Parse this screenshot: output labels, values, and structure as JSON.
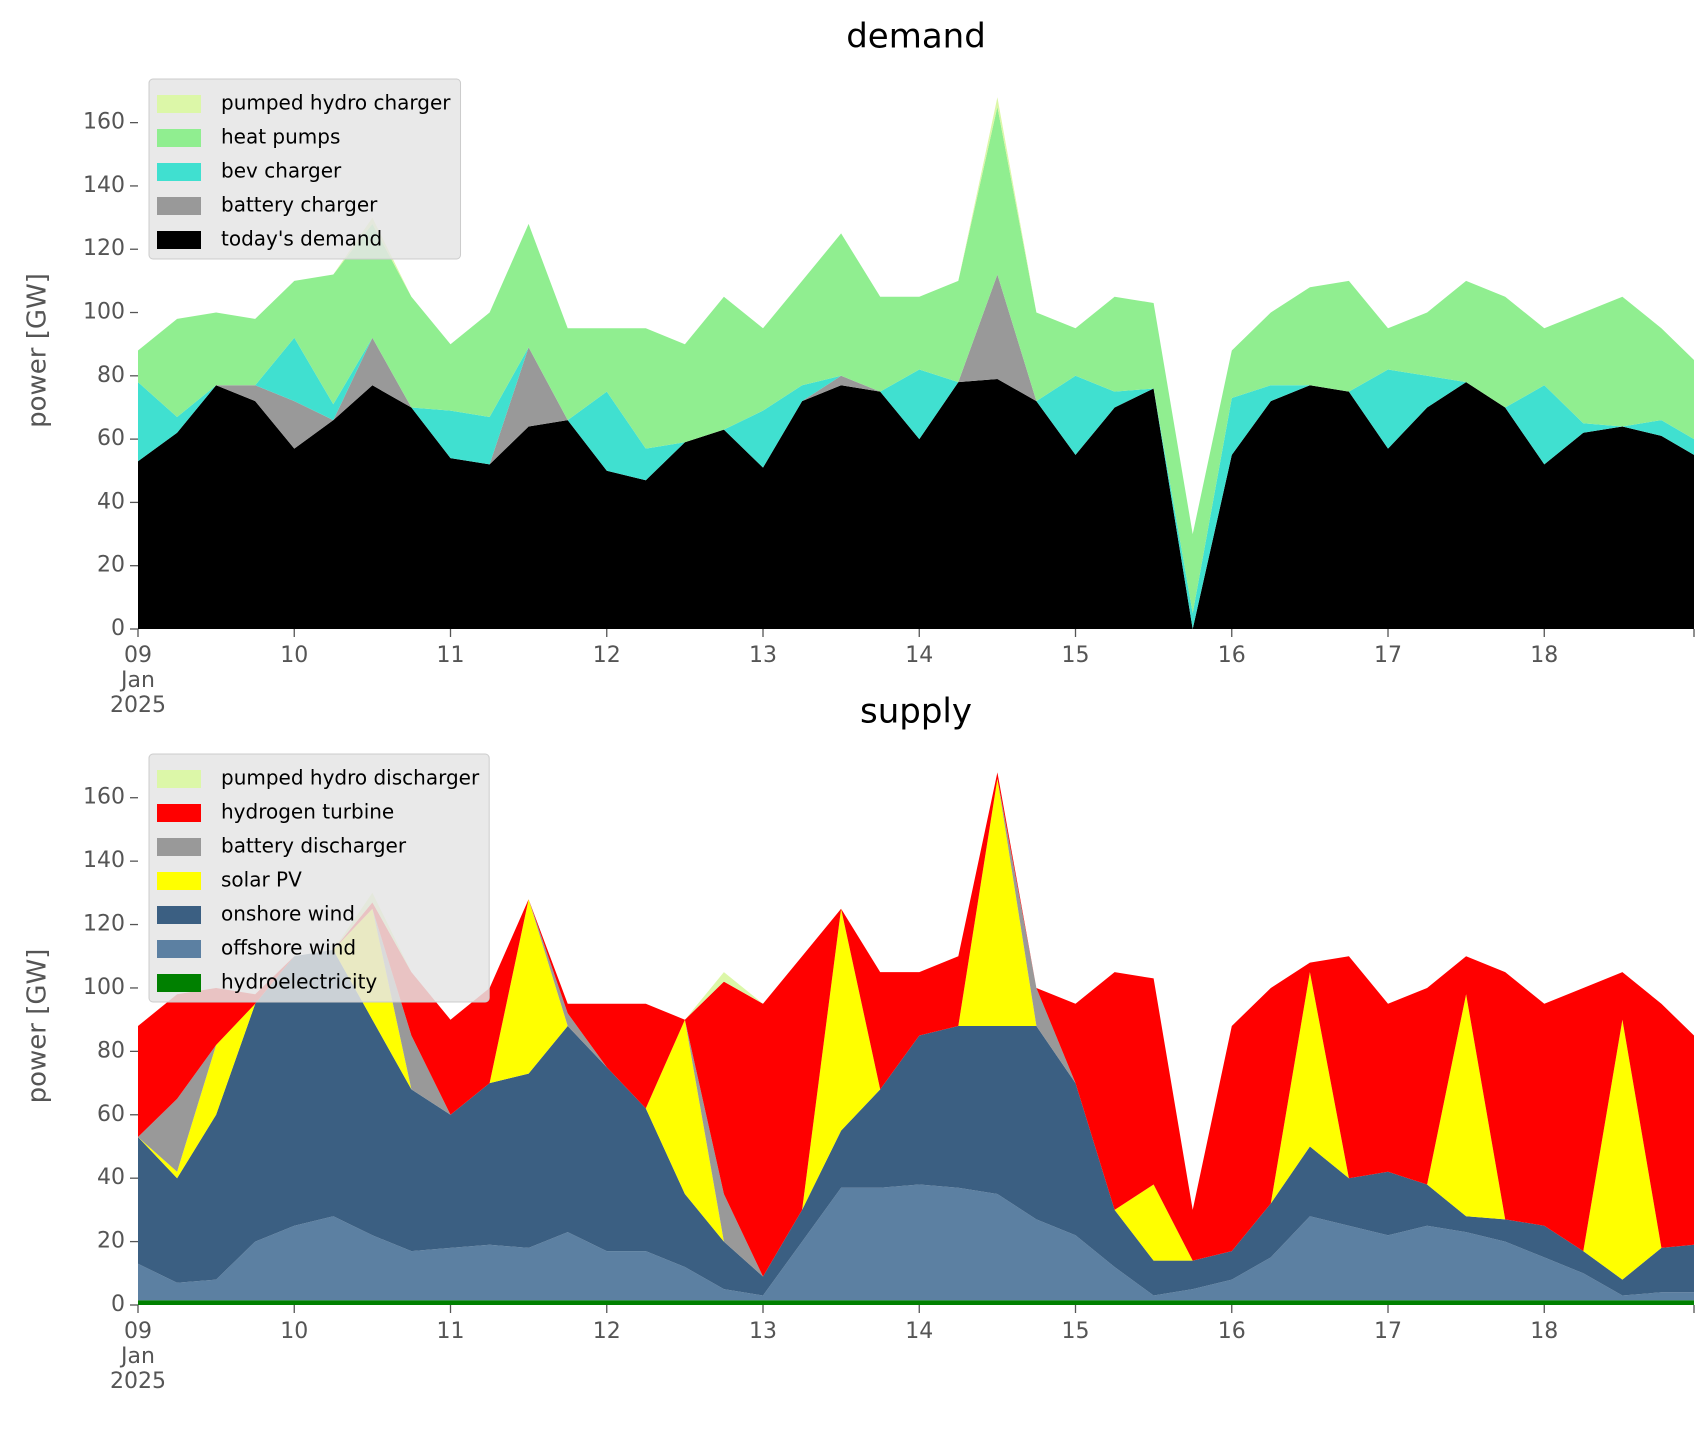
{
  "chart_data": [
    {
      "type": "area",
      "stacked": true,
      "title": "demand",
      "ylabel": "power [GW]",
      "legend": "upper left",
      "x": [
        "2025-01-09T00:00",
        "2025-01-09T06:00",
        "2025-01-09T12:00",
        "2025-01-09T18:00",
        "2025-01-10T00:00",
        "2025-01-10T06:00",
        "2025-01-10T12:00",
        "2025-01-10T18:00",
        "2025-01-11T00:00",
        "2025-01-11T06:00",
        "2025-01-11T12:00",
        "2025-01-11T18:00",
        "2025-01-12T00:00",
        "2025-01-12T06:00",
        "2025-01-12T12:00",
        "2025-01-12T18:00",
        "2025-01-13T00:00",
        "2025-01-13T06:00",
        "2025-01-13T12:00",
        "2025-01-13T18:00",
        "2025-01-14T00:00",
        "2025-01-14T06:00",
        "2025-01-14T12:00",
        "2025-01-14T18:00",
        "2025-01-15T00:00",
        "2025-01-15T06:00",
        "2025-01-15T12:00",
        "2025-01-15T18:00",
        "2025-01-16T00:00",
        "2025-01-16T06:00",
        "2025-01-16T12:00",
        "2025-01-16T18:00",
        "2025-01-17T00:00",
        "2025-01-17T06:00",
        "2025-01-17T12:00",
        "2025-01-17T18:00",
        "2025-01-18T00:00",
        "2025-01-18T06:00",
        "2025-01-18T12:00",
        "2025-01-18T18:00",
        "2025-01-18T23:00"
      ],
      "xlim": [
        "2025-01-09T00:00",
        "2025-01-18T23:00"
      ],
      "xticks": [
        {
          "value": "2025-01-09T00:00",
          "label": "09\nJan\n2025"
        },
        {
          "value": "2025-01-10T00:00",
          "label": "10"
        },
        {
          "value": "2025-01-11T00:00",
          "label": "11"
        },
        {
          "value": "2025-01-12T00:00",
          "label": "12"
        },
        {
          "value": "2025-01-13T00:00",
          "label": "13"
        },
        {
          "value": "2025-01-14T00:00",
          "label": "14"
        },
        {
          "value": "2025-01-15T00:00",
          "label": "15"
        },
        {
          "value": "2025-01-16T00:00",
          "label": "16"
        },
        {
          "value": "2025-01-17T00:00",
          "label": "17"
        },
        {
          "value": "2025-01-18T00:00",
          "label": "18"
        }
      ],
      "ylim": [
        0,
        176
      ],
      "yticks": [
        0,
        20,
        40,
        60,
        80,
        100,
        120,
        140,
        160
      ],
      "series": [
        {
          "name": "today's demand",
          "color": "#000000",
          "values": [
            53,
            62,
            77,
            72,
            57,
            66,
            77,
            70,
            54,
            52,
            64,
            66,
            50,
            47,
            59,
            63,
            51,
            72,
            77,
            75,
            60,
            78,
            79,
            72,
            55,
            70,
            76,
            0,
            55,
            72,
            77,
            75,
            57,
            70,
            78,
            70,
            52,
            62,
            64,
            61,
            55
          ]
        },
        {
          "name": "battery charger",
          "color": "#999999",
          "values": [
            0,
            0,
            0,
            5,
            15,
            0,
            15,
            0,
            0,
            0,
            25,
            0,
            0,
            0,
            0,
            0,
            0,
            0,
            3,
            0,
            0,
            0,
            33,
            0,
            0,
            0,
            0,
            0,
            0,
            0,
            0,
            0,
            0,
            0,
            0,
            0,
            0,
            0,
            0,
            0,
            0
          ]
        },
        {
          "name": "bev charger",
          "color": "#40e0d0",
          "values": [
            25,
            5,
            0,
            0,
            20,
            5,
            0,
            0,
            15,
            15,
            0,
            0,
            25,
            10,
            0,
            0,
            18,
            5,
            0,
            0,
            22,
            0,
            0,
            0,
            25,
            5,
            0,
            5,
            18,
            5,
            0,
            0,
            25,
            10,
            0,
            0,
            25,
            3,
            0,
            5,
            5
          ]
        },
        {
          "name": "heat pumps",
          "color": "#90ee90",
          "values": [
            10,
            31,
            23,
            21,
            18,
            41,
            36,
            35,
            21,
            33,
            39,
            29,
            20,
            38,
            31,
            42,
            26,
            33,
            45,
            30,
            23,
            32,
            53,
            28,
            15,
            30,
            27,
            25,
            15,
            23,
            31,
            35,
            13,
            20,
            32,
            35,
            18,
            35,
            41,
            29,
            25
          ]
        },
        {
          "name": "pumped hydro charger",
          "color": "#dcf7a8",
          "values": [
            0,
            0,
            0,
            0,
            0,
            0,
            2,
            0,
            0,
            0,
            0,
            0,
            0,
            0,
            0,
            0,
            0,
            0,
            0,
            0,
            0,
            0,
            3,
            0,
            0,
            0,
            0,
            0,
            0,
            0,
            0,
            0,
            0,
            0,
            0,
            0,
            0,
            0,
            0,
            0,
            0
          ]
        }
      ]
    },
    {
      "type": "area",
      "stacked": true,
      "title": "supply",
      "ylabel": "power [GW]",
      "legend": "upper left",
      "x": [
        "2025-01-09T00:00",
        "2025-01-09T06:00",
        "2025-01-09T12:00",
        "2025-01-09T18:00",
        "2025-01-10T00:00",
        "2025-01-10T06:00",
        "2025-01-10T12:00",
        "2025-01-10T18:00",
        "2025-01-11T00:00",
        "2025-01-11T06:00",
        "2025-01-11T12:00",
        "2025-01-11T18:00",
        "2025-01-12T00:00",
        "2025-01-12T06:00",
        "2025-01-12T12:00",
        "2025-01-12T18:00",
        "2025-01-13T00:00",
        "2025-01-13T06:00",
        "2025-01-13T12:00",
        "2025-01-13T18:00",
        "2025-01-14T00:00",
        "2025-01-14T06:00",
        "2025-01-14T12:00",
        "2025-01-14T18:00",
        "2025-01-15T00:00",
        "2025-01-15T06:00",
        "2025-01-15T12:00",
        "2025-01-15T18:00",
        "2025-01-16T00:00",
        "2025-01-16T06:00",
        "2025-01-16T12:00",
        "2025-01-16T18:00",
        "2025-01-17T00:00",
        "2025-01-17T06:00",
        "2025-01-17T12:00",
        "2025-01-17T18:00",
        "2025-01-18T00:00",
        "2025-01-18T06:00",
        "2025-01-18T12:00",
        "2025-01-18T18:00",
        "2025-01-18T23:00"
      ],
      "xlim": [
        "2025-01-09T00:00",
        "2025-01-18T23:00"
      ],
      "xticks": [
        {
          "value": "2025-01-09T00:00",
          "label": "09\nJan\n2025"
        },
        {
          "value": "2025-01-10T00:00",
          "label": "10"
        },
        {
          "value": "2025-01-11T00:00",
          "label": "11"
        },
        {
          "value": "2025-01-12T00:00",
          "label": "12"
        },
        {
          "value": "2025-01-13T00:00",
          "label": "13"
        },
        {
          "value": "2025-01-14T00:00",
          "label": "14"
        },
        {
          "value": "2025-01-15T00:00",
          "label": "15"
        },
        {
          "value": "2025-01-16T00:00",
          "label": "16"
        },
        {
          "value": "2025-01-17T00:00",
          "label": "17"
        },
        {
          "value": "2025-01-18T00:00",
          "label": "18"
        }
      ],
      "ylim": [
        0,
        176
      ],
      "yticks": [
        0,
        20,
        40,
        60,
        80,
        100,
        120,
        140,
        160
      ],
      "series": [
        {
          "name": "hydroelectricity",
          "color": "#008000",
          "values": [
            1.5,
            1.5,
            1.5,
            1.5,
            1.5,
            1.5,
            1.5,
            1.5,
            1.5,
            1.5,
            1.5,
            1.5,
            1.5,
            1.5,
            1.5,
            1.5,
            1.5,
            1.5,
            1.5,
            1.5,
            1.5,
            1.5,
            1.5,
            1.5,
            1.5,
            1.5,
            1.5,
            1.5,
            1.5,
            1.5,
            1.5,
            1.5,
            1.5,
            1.5,
            1.5,
            1.5,
            1.5,
            1.5,
            1.5,
            1.5,
            1.5
          ]
        },
        {
          "name": "offshore wind",
          "color": "#5c80a2",
          "values": [
            11.5,
            5.5,
            6.5,
            18.5,
            23.5,
            26.5,
            20.5,
            15.5,
            16.5,
            17.5,
            16.5,
            21.5,
            15.5,
            15.5,
            10.5,
            3.5,
            1.5,
            18.5,
            35.5,
            35.5,
            36.5,
            35.5,
            33.5,
            25.5,
            20.5,
            10.5,
            1.5,
            3.5,
            6.5,
            13.5,
            26.5,
            23.5,
            20.5,
            23.5,
            21.5,
            18.5,
            13.5,
            8.5,
            1.5,
            2.5,
            2.5
          ]
        },
        {
          "name": "onshore wind",
          "color": "#3b5f82",
          "values": [
            40,
            33,
            52,
            75,
            85,
            84,
            68,
            51,
            42,
            51,
            55,
            65,
            58,
            45,
            23,
            15,
            6,
            10,
            18,
            31,
            47,
            51,
            53,
            61,
            48,
            18,
            11,
            9,
            9,
            17,
            22,
            15,
            20,
            13,
            5,
            7,
            10,
            7,
            5,
            14,
            15
          ]
        },
        {
          "name": "solar PV",
          "color": "#ffff00",
          "values": [
            0,
            2,
            22,
            0,
            0,
            0,
            35,
            0,
            0,
            0,
            55,
            0,
            0,
            0,
            55,
            0,
            0,
            0,
            70,
            0,
            0,
            0,
            78,
            0,
            0,
            0,
            24,
            0,
            0,
            0,
            55,
            0,
            0,
            0,
            70,
            0,
            0,
            0,
            82,
            0,
            0
          ]
        },
        {
          "name": "battery discharger",
          "color": "#999999",
          "values": [
            0,
            23,
            0,
            0,
            0,
            0,
            0,
            17,
            0,
            0,
            0,
            4,
            0,
            0,
            0,
            15,
            0,
            0,
            0,
            0,
            0,
            0,
            0,
            12,
            0,
            0,
            0,
            0,
            0,
            0,
            0,
            0,
            0,
            0,
            0,
            0,
            0,
            0,
            0,
            0,
            0
          ]
        },
        {
          "name": "hydrogen turbine",
          "color": "#ff0000",
          "values": [
            35,
            33,
            18,
            3,
            0,
            0,
            2,
            20,
            30,
            30,
            0,
            3,
            20,
            33,
            0,
            67,
            86,
            80,
            0,
            37,
            20,
            22,
            2,
            0,
            25,
            75,
            65,
            16,
            71,
            68,
            3,
            70,
            53,
            62,
            12,
            78,
            70,
            83,
            15,
            77,
            66
          ]
        },
        {
          "name": "pumped hydro discharger",
          "color": "#dcf7a8",
          "values": [
            0,
            0,
            0,
            0,
            0,
            0,
            3,
            0,
            0,
            0,
            0,
            0,
            0,
            0,
            0,
            3,
            0,
            0,
            0,
            0,
            0,
            0,
            0,
            0,
            0,
            0,
            0,
            0,
            0,
            0,
            0,
            0,
            0,
            0,
            0,
            0,
            0,
            0,
            0,
            0,
            0
          ]
        }
      ]
    }
  ]
}
